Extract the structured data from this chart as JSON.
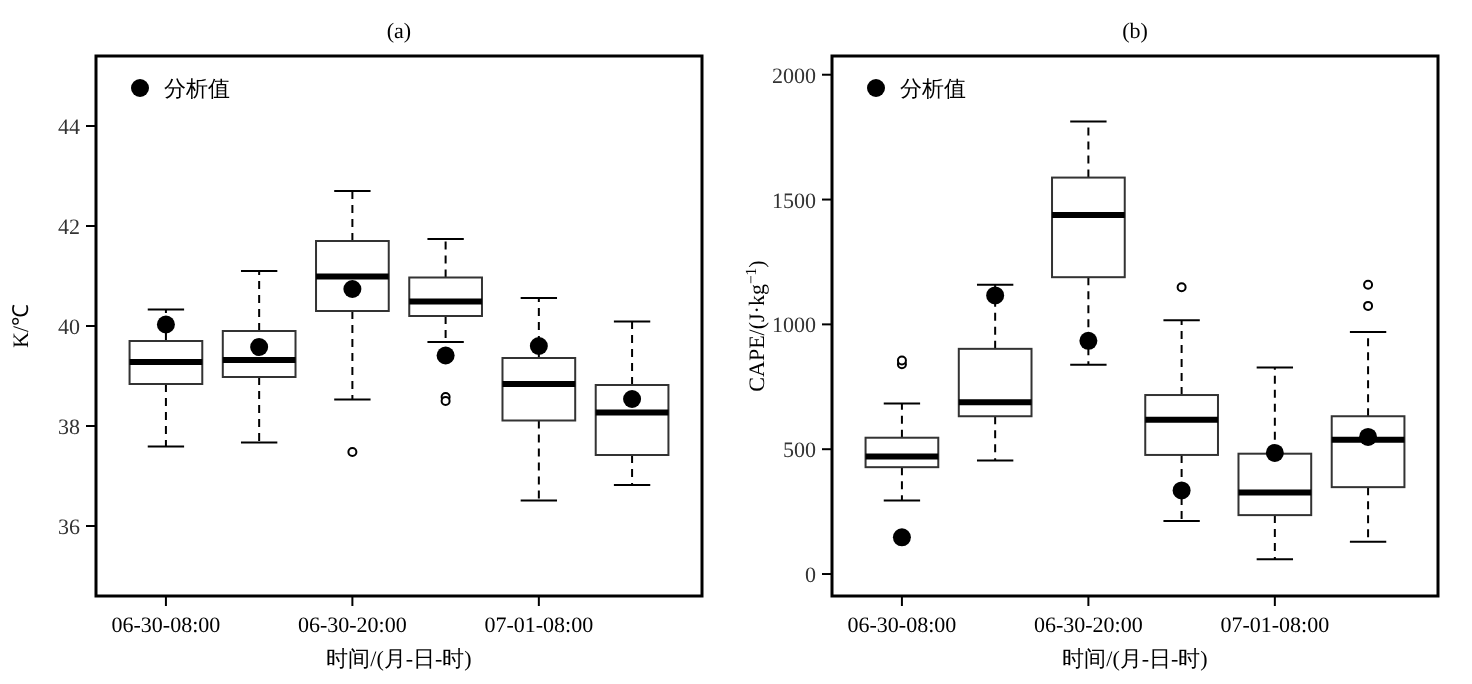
{
  "chart_data": [
    {
      "type": "box",
      "title": "(a)",
      "xlabel": "时间/(月-日-时)",
      "ylabel": "K/℃",
      "categories": [
        "06-30-08:00",
        null,
        "06-30-20:00",
        null,
        "07-01-08:00",
        null
      ],
      "ylim": [
        34.6,
        45.4
      ],
      "yticks": [
        36,
        38,
        40,
        42,
        44
      ],
      "legend": "top left",
      "marker": "circle",
      "boxes": [
        {
          "low": 37.59,
          "q1": 38.84,
          "median": 39.28,
          "q3": 39.7,
          "high": 40.33
        },
        {
          "low": 37.67,
          "q1": 38.98,
          "median": 39.32,
          "q3": 39.9,
          "high": 41.1
        },
        {
          "low": 38.53,
          "q1": 40.3,
          "median": 40.99,
          "q3": 41.7,
          "high": 42.7,
          "outliers": [
            37.48
          ]
        },
        {
          "low": 39.68,
          "q1": 40.2,
          "median": 40.49,
          "q3": 40.97,
          "high": 41.74,
          "outliers": [
            38.58,
            38.5
          ]
        },
        {
          "low": 36.51,
          "q1": 38.11,
          "median": 38.84,
          "q3": 39.36,
          "high": 40.56
        },
        {
          "low": 36.82,
          "q1": 37.42,
          "median": 38.27,
          "q3": 38.82,
          "high": 40.09
        }
      ],
      "series": [
        {
          "name": "分析值",
          "type": "scatter",
          "color": "#000000",
          "values": [
            40.03,
            39.58,
            40.74,
            39.41,
            39.6,
            38.54
          ]
        }
      ]
    },
    {
      "type": "box",
      "title": "(b)",
      "xlabel": "时间/(月-日-时)",
      "ylabel": "CAPE/(J·kg$^{−1}$)",
      "categories": [
        "06-30-08:00",
        null,
        "06-30-20:00",
        null,
        "07-01-08:00",
        null
      ],
      "ylim": [
        -88,
        2075
      ],
      "yticks": [
        0,
        500,
        1000,
        1500,
        2000
      ],
      "legend": "top left",
      "marker": "circle",
      "boxes": [
        {
          "low": 295,
          "q1": 428,
          "median": 471,
          "q3": 546,
          "high": 683,
          "outliers": [
            840,
            855
          ]
        },
        {
          "low": 455,
          "q1": 632,
          "median": 688,
          "q3": 902,
          "high": 1159
        },
        {
          "low": 838,
          "q1": 1189,
          "median": 1438,
          "q3": 1588,
          "high": 1813
        },
        {
          "low": 212,
          "q1": 477,
          "median": 618,
          "q3": 717,
          "high": 1017,
          "outliers": [
            1149
          ]
        },
        {
          "low": 59,
          "q1": 236,
          "median": 327,
          "q3": 482,
          "high": 827
        },
        {
          "low": 129,
          "q1": 348,
          "median": 538,
          "q3": 632,
          "high": 969,
          "outliers": [
            1159,
            1074
          ]
        }
      ],
      "series": [
        {
          "name": "分析值",
          "type": "scatter",
          "color": "#000000",
          "values": [
            147,
            1116,
            934,
            335,
            485,
            549
          ]
        }
      ]
    }
  ]
}
